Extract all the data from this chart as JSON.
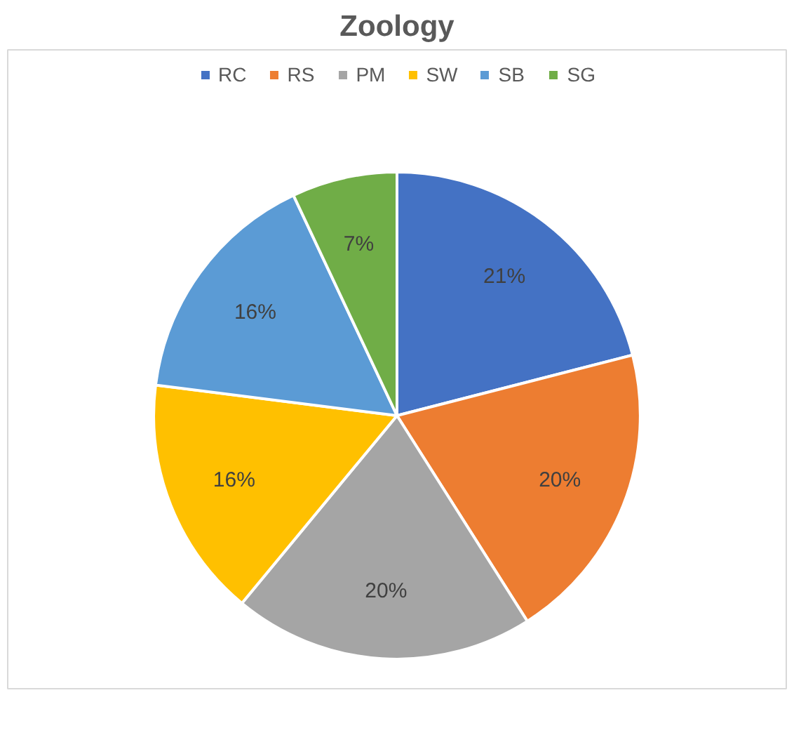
{
  "chart_data": {
    "type": "pie",
    "title": "Zoology",
    "categories": [
      "RC",
      "RS",
      "PM",
      "SW",
      "SB",
      "SG"
    ],
    "values": [
      21,
      20,
      20,
      16,
      16,
      7
    ],
    "colors": [
      "#4472c4",
      "#ed7d31",
      "#a5a5a5",
      "#ffc000",
      "#5b9bd5",
      "#70ad47"
    ],
    "value_labels": [
      "21%",
      "20%",
      "20%",
      "16%",
      "16%",
      "7%"
    ],
    "legend": "top"
  }
}
